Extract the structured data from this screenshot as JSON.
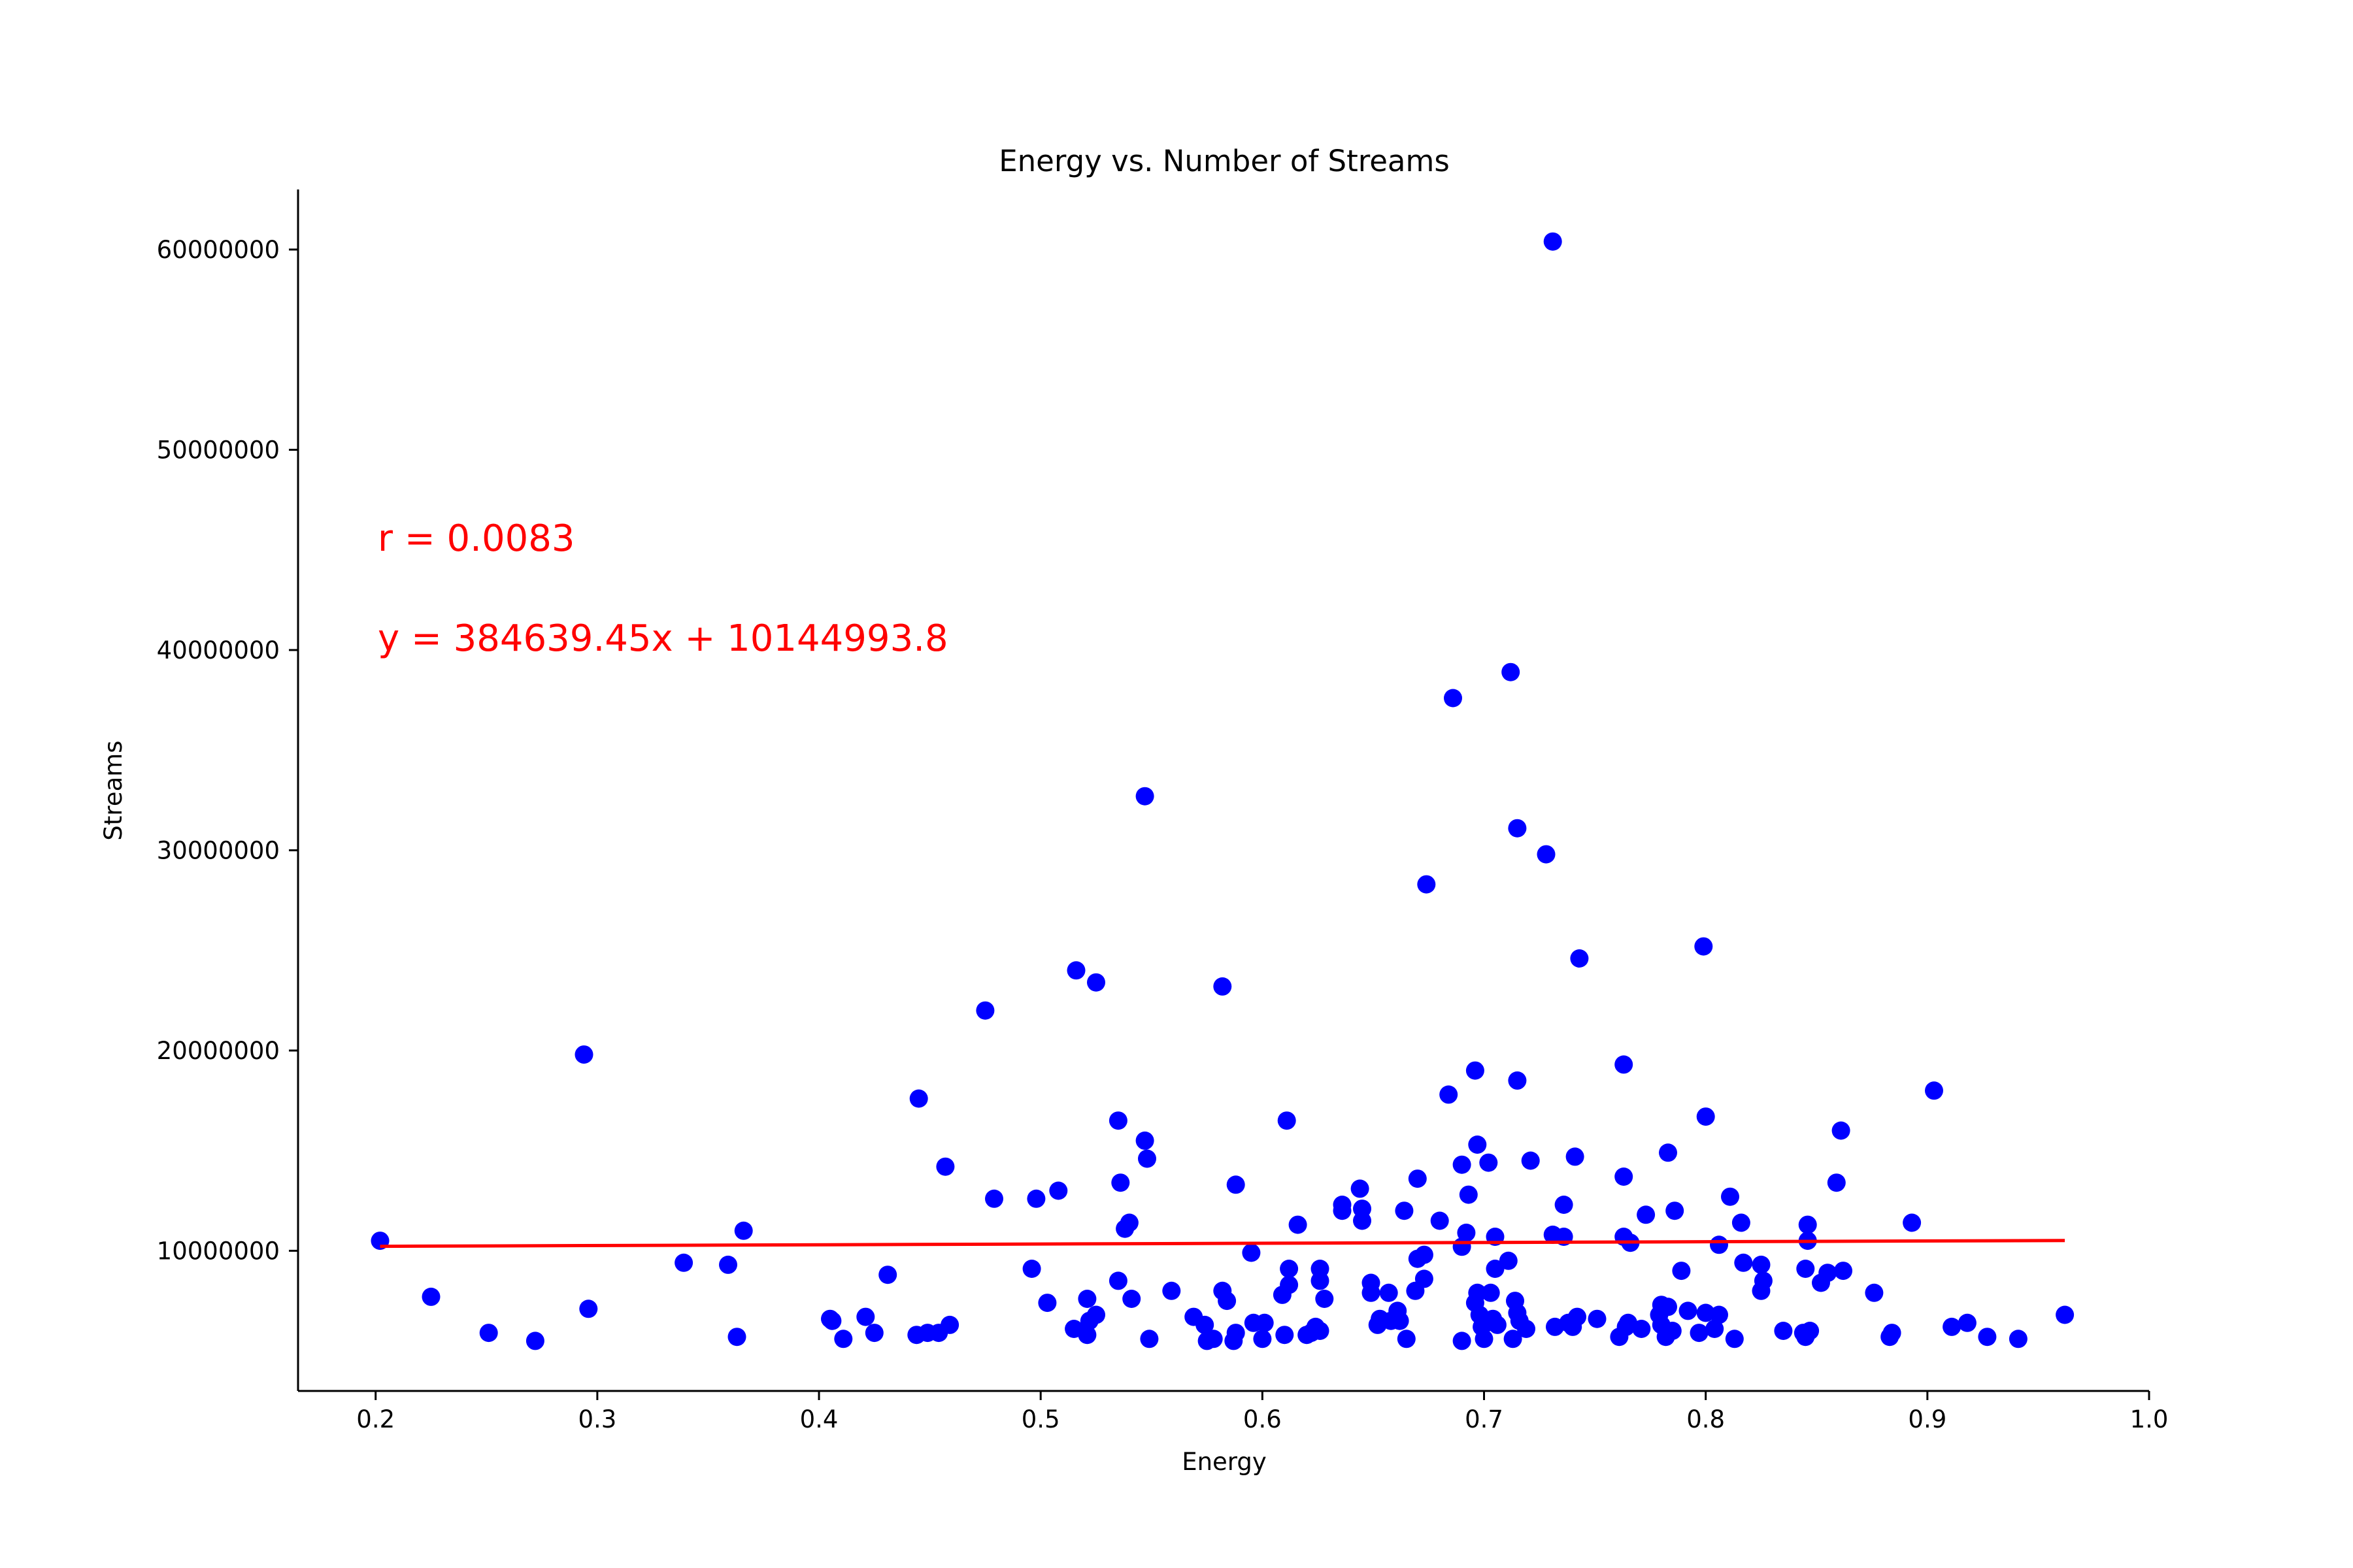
{
  "chart_data": {
    "type": "scatter",
    "title": "Energy vs. Number of Streams",
    "xlabel": "Energy",
    "ylabel": "Streams",
    "xlim": [
      0.165,
      1.0
    ],
    "ylim": [
      3000000,
      63000000
    ],
    "xticks": [
      0.2,
      0.3,
      0.4,
      0.5,
      0.6,
      0.7,
      0.8,
      0.9,
      1.0
    ],
    "xtick_labels": [
      "0.2",
      "0.3",
      "0.4",
      "0.5",
      "0.6",
      "0.7",
      "0.8",
      "0.9",
      "1.0"
    ],
    "yticks": [
      10000000,
      20000000,
      30000000,
      40000000,
      50000000,
      60000000
    ],
    "ytick_labels": [
      "10000000",
      "20000000",
      "30000000",
      "40000000",
      "50000000",
      "60000000"
    ],
    "grid": false,
    "point_color": "#0000ff",
    "line_color": "#ff0000",
    "annotations": [
      "r = 0.0083",
      "y = 384639.45x + 10144993.8"
    ],
    "regression": {
      "slope": 384639.45,
      "intercept": 10144993.8,
      "x_range": [
        0.202,
        0.962
      ]
    },
    "points": [
      [
        0.202,
        10500000
      ],
      [
        0.225,
        7700000
      ],
      [
        0.251,
        5900000
      ],
      [
        0.272,
        5500000
      ],
      [
        0.294,
        19800000
      ],
      [
        0.296,
        7100000
      ],
      [
        0.339,
        9400000
      ],
      [
        0.359,
        9300000
      ],
      [
        0.363,
        5700000
      ],
      [
        0.366,
        11000000
      ],
      [
        0.405,
        6600000
      ],
      [
        0.406,
        6500000
      ],
      [
        0.411,
        5600000
      ],
      [
        0.421,
        6700000
      ],
      [
        0.425,
        5900000
      ],
      [
        0.431,
        8800000
      ],
      [
        0.444,
        5800000
      ],
      [
        0.445,
        17600000
      ],
      [
        0.449,
        5900000
      ],
      [
        0.454,
        5900000
      ],
      [
        0.457,
        14200000
      ],
      [
        0.459,
        6300000
      ],
      [
        0.475,
        22000000
      ],
      [
        0.479,
        12600000
      ],
      [
        0.496,
        9100000
      ],
      [
        0.498,
        12600000
      ],
      [
        0.503,
        7400000
      ],
      [
        0.508,
        13000000
      ],
      [
        0.515,
        6100000
      ],
      [
        0.516,
        24000000
      ],
      [
        0.521,
        5800000
      ],
      [
        0.521,
        7600000
      ],
      [
        0.522,
        6500000
      ],
      [
        0.525,
        6800000
      ],
      [
        0.525,
        23400000
      ],
      [
        0.535,
        8500000
      ],
      [
        0.535,
        16500000
      ],
      [
        0.536,
        13400000
      ],
      [
        0.538,
        11100000
      ],
      [
        0.54,
        11400000
      ],
      [
        0.541,
        7600000
      ],
      [
        0.547,
        15500000
      ],
      [
        0.547,
        32700000
      ],
      [
        0.548,
        14600000
      ],
      [
        0.549,
        5600000
      ],
      [
        0.559,
        8000000
      ],
      [
        0.569,
        6700000
      ],
      [
        0.574,
        6300000
      ],
      [
        0.575,
        5500000
      ],
      [
        0.578,
        5600000
      ],
      [
        0.582,
        8000000
      ],
      [
        0.582,
        23200000
      ],
      [
        0.584,
        7500000
      ],
      [
        0.587,
        5500000
      ],
      [
        0.588,
        5900000
      ],
      [
        0.588,
        13300000
      ],
      [
        0.595,
        9900000
      ],
      [
        0.596,
        6400000
      ],
      [
        0.6,
        5600000
      ],
      [
        0.601,
        6400000
      ],
      [
        0.609,
        7800000
      ],
      [
        0.61,
        5800000
      ],
      [
        0.611,
        16500000
      ],
      [
        0.612,
        9100000
      ],
      [
        0.612,
        8300000
      ],
      [
        0.616,
        11300000
      ],
      [
        0.62,
        5800000
      ],
      [
        0.622,
        5900000
      ],
      [
        0.624,
        6200000
      ],
      [
        0.626,
        9100000
      ],
      [
        0.626,
        8500000
      ],
      [
        0.626,
        6000000
      ],
      [
        0.628,
        7600000
      ],
      [
        0.636,
        12000000
      ],
      [
        0.636,
        12300000
      ],
      [
        0.644,
        13100000
      ],
      [
        0.645,
        11500000
      ],
      [
        0.645,
        12100000
      ],
      [
        0.649,
        7900000
      ],
      [
        0.649,
        8400000
      ],
      [
        0.652,
        6300000
      ],
      [
        0.653,
        6600000
      ],
      [
        0.657,
        7900000
      ],
      [
        0.658,
        6500000
      ],
      [
        0.661,
        7000000
      ],
      [
        0.662,
        6500000
      ],
      [
        0.664,
        12000000
      ],
      [
        0.665,
        5600000
      ],
      [
        0.669,
        8000000
      ],
      [
        0.67,
        13600000
      ],
      [
        0.67,
        9600000
      ],
      [
        0.673,
        9800000
      ],
      [
        0.673,
        8600000
      ],
      [
        0.674,
        28300000
      ],
      [
        0.68,
        11500000
      ],
      [
        0.684,
        17800000
      ],
      [
        0.686,
        37600000
      ],
      [
        0.69,
        10200000
      ],
      [
        0.69,
        14300000
      ],
      [
        0.69,
        5500000
      ],
      [
        0.692,
        10900000
      ],
      [
        0.693,
        12800000
      ],
      [
        0.696,
        19000000
      ],
      [
        0.696,
        7400000
      ],
      [
        0.697,
        15300000
      ],
      [
        0.697,
        7900000
      ],
      [
        0.698,
        6800000
      ],
      [
        0.699,
        6200000
      ],
      [
        0.7,
        5600000
      ],
      [
        0.701,
        6400000
      ],
      [
        0.702,
        14400000
      ],
      [
        0.703,
        7900000
      ],
      [
        0.704,
        6600000
      ],
      [
        0.705,
        9100000
      ],
      [
        0.705,
        10700000
      ],
      [
        0.706,
        6300000
      ],
      [
        0.711,
        9500000
      ],
      [
        0.712,
        38900000
      ],
      [
        0.713,
        5600000
      ],
      [
        0.714,
        7500000
      ],
      [
        0.715,
        31100000
      ],
      [
        0.715,
        18500000
      ],
      [
        0.715,
        6900000
      ],
      [
        0.716,
        6500000
      ],
      [
        0.719,
        6100000
      ],
      [
        0.721,
        14500000
      ],
      [
        0.728,
        29800000
      ],
      [
        0.731,
        60400000
      ],
      [
        0.731,
        10800000
      ],
      [
        0.732,
        6200000
      ],
      [
        0.736,
        12300000
      ],
      [
        0.736,
        10700000
      ],
      [
        0.738,
        6400000
      ],
      [
        0.74,
        6200000
      ],
      [
        0.741,
        14700000
      ],
      [
        0.742,
        6700000
      ],
      [
        0.743,
        24600000
      ],
      [
        0.751,
        6600000
      ],
      [
        0.761,
        5700000
      ],
      [
        0.763,
        10700000
      ],
      [
        0.763,
        13700000
      ],
      [
        0.763,
        19300000
      ],
      [
        0.764,
        6200000
      ],
      [
        0.765,
        6400000
      ],
      [
        0.766,
        10400000
      ],
      [
        0.771,
        6100000
      ],
      [
        0.773,
        11800000
      ],
      [
        0.779,
        6800000
      ],
      [
        0.78,
        6300000
      ],
      [
        0.78,
        7300000
      ],
      [
        0.782,
        5700000
      ],
      [
        0.783,
        14900000
      ],
      [
        0.783,
        7200000
      ],
      [
        0.785,
        6000000
      ],
      [
        0.786,
        12000000
      ],
      [
        0.789,
        9000000
      ],
      [
        0.792,
        7000000
      ],
      [
        0.797,
        5900000
      ],
      [
        0.799,
        25200000
      ],
      [
        0.8,
        16700000
      ],
      [
        0.8,
        6900000
      ],
      [
        0.804,
        6100000
      ],
      [
        0.806,
        10300000
      ],
      [
        0.806,
        6800000
      ],
      [
        0.811,
        12700000
      ],
      [
        0.813,
        5600000
      ],
      [
        0.816,
        11400000
      ],
      [
        0.817,
        9400000
      ],
      [
        0.825,
        9300000
      ],
      [
        0.825,
        8000000
      ],
      [
        0.826,
        8500000
      ],
      [
        0.835,
        6000000
      ],
      [
        0.844,
        5900000
      ],
      [
        0.845,
        9100000
      ],
      [
        0.845,
        5700000
      ],
      [
        0.846,
        11300000
      ],
      [
        0.846,
        10500000
      ],
      [
        0.847,
        6000000
      ],
      [
        0.852,
        8400000
      ],
      [
        0.855,
        8900000
      ],
      [
        0.859,
        13400000
      ],
      [
        0.861,
        16000000
      ],
      [
        0.862,
        9000000
      ],
      [
        0.876,
        7900000
      ],
      [
        0.883,
        5700000
      ],
      [
        0.884,
        5900000
      ],
      [
        0.893,
        11400000
      ],
      [
        0.903,
        18000000
      ],
      [
        0.911,
        6200000
      ],
      [
        0.918,
        6400000
      ],
      [
        0.927,
        5700000
      ],
      [
        0.941,
        5600000
      ],
      [
        0.962,
        6800000
      ]
    ]
  }
}
